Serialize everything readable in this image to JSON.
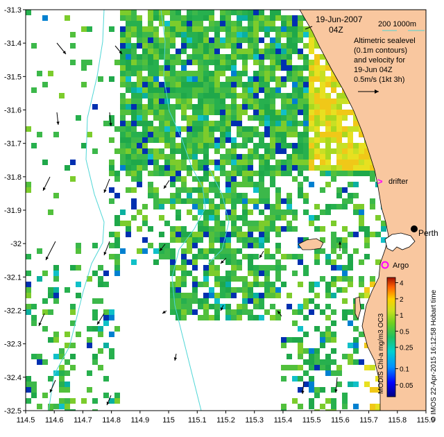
{
  "map": {
    "date_line1": "19-Jun-2007",
    "date_line2": "04Z",
    "scale_label": "200  1000m",
    "legend_lines": [
      "Altimetric sealevel",
      "(0.1m contours)",
      "and velocity for",
      "19-Jun 04Z",
      "0.5m/s (1kt 3h)"
    ],
    "markers": {
      "drifter": "drifter",
      "argo": "Argo",
      "perth": "Perth"
    },
    "colorbar_title": "MODIS Chl-a mg/m3 OC3",
    "credit": "© IMOS 22-Apr-2015 16:12:58 Hobart time",
    "colors": {
      "land": "#f9c79f",
      "isobath": "#4fd6d6",
      "drifter": "#ff00ff",
      "argo": "#ff00ff"
    }
  },
  "chart_data": {
    "type": "heatmap",
    "title": "",
    "xlabel": "",
    "ylabel": "",
    "xlim": [
      114.5,
      115.9
    ],
    "ylim": [
      -32.5,
      -31.3
    ],
    "x_ticks": [
      "114.5",
      "114.6",
      "114.7",
      "114.8",
      "114.9",
      "115",
      "115.1",
      "115.2",
      "115.3",
      "115.4",
      "115.5",
      "115.6",
      "115.7",
      "115.8",
      "115.9"
    ],
    "y_ticks": [
      "-31.3",
      "-31.4",
      "-31.5",
      "-31.6",
      "-31.7",
      "-31.8",
      "-31.9",
      "-32",
      "-32.1",
      "-32.2",
      "-32.3",
      "-32.4",
      "-32.5"
    ],
    "colorbar_ticks": [
      "4",
      "2",
      "1",
      "0.5",
      "0.25",
      "0.1",
      "0.05"
    ]
  }
}
